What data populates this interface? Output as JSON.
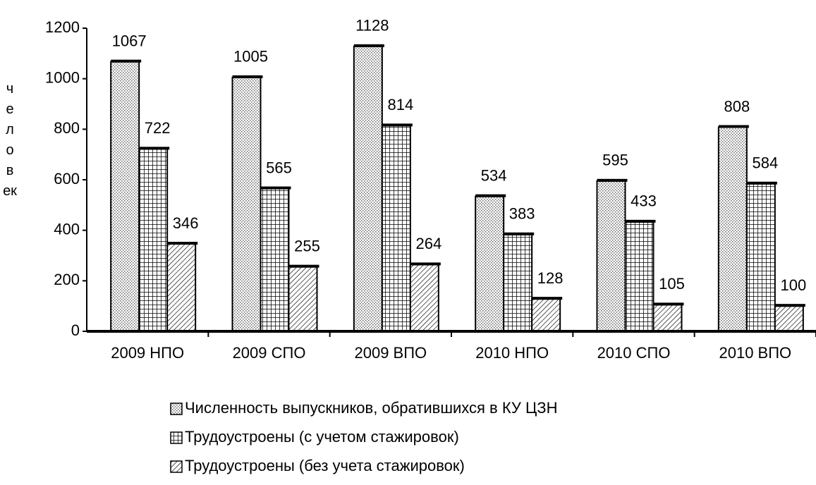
{
  "chart_data": {
    "type": "bar",
    "y_label": "человек",
    "categories": [
      "2009 НПО",
      "2009 СПО",
      "2009 ВПО",
      "2010 НПО",
      "2010 СПО",
      "2010 ВПО"
    ],
    "series": [
      {
        "name": "Численность выпускников, обратившихся в КУ ЦЗН",
        "values": [
          1067,
          1005,
          1128,
          534,
          595,
          808
        ]
      },
      {
        "name": "Трудоустроены (с учетом стажировок)",
        "values": [
          722,
          565,
          814,
          383,
          433,
          584
        ]
      },
      {
        "name": "Трудоустроены (без учета стажировок)",
        "values": [
          346,
          255,
          264,
          128,
          105,
          100
        ]
      }
    ],
    "ylim": [
      0,
      1200
    ],
    "yticks": [
      0,
      200,
      400,
      600,
      800,
      1000,
      1200
    ]
  }
}
